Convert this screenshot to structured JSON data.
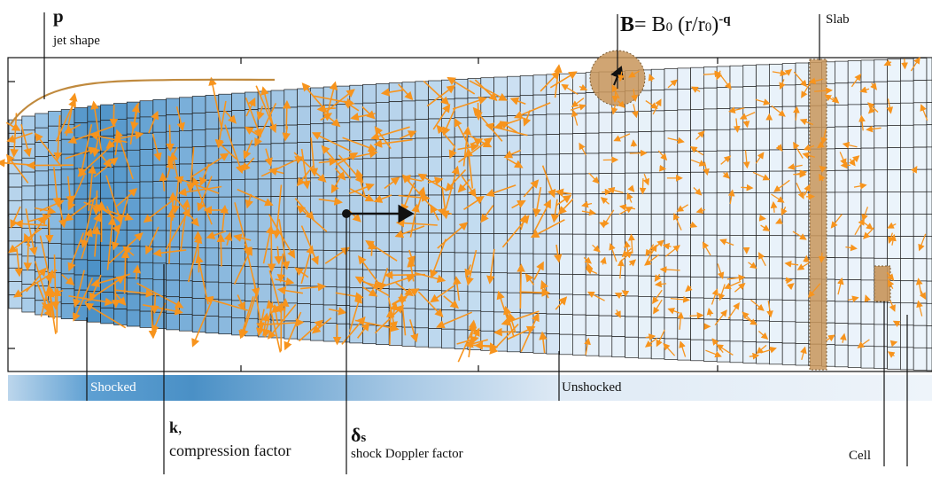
{
  "labels": {
    "p_symbol": "p",
    "p_desc": "jet shape",
    "b_symbol": "B",
    "b_rest": "= B",
    "b_sub0": "0",
    "b_paren": " (r/r",
    "b_sub1": "0",
    "b_close": ")",
    "b_exp": "-q",
    "slab": "Slab",
    "cell": "Cell",
    "shocked": "Shocked",
    "unshocked": "Unshocked",
    "k_symbol": "k",
    "k_comma": ",",
    "k_desc": "compression factor",
    "delta_symbol": "δ",
    "delta_sub": "s",
    "delta_desc": "shock Doppler factor"
  },
  "colors": {
    "shock_dark": "#4a90c6",
    "unshocked_light": "#e8f1fa",
    "arrow": "#f7941d",
    "jet_shape_curve": "#c08a3e",
    "highlight": "#c8955a",
    "grid": "#222222"
  },
  "icons": [
    "field-vector-arrow",
    "velocity-arrow"
  ]
}
